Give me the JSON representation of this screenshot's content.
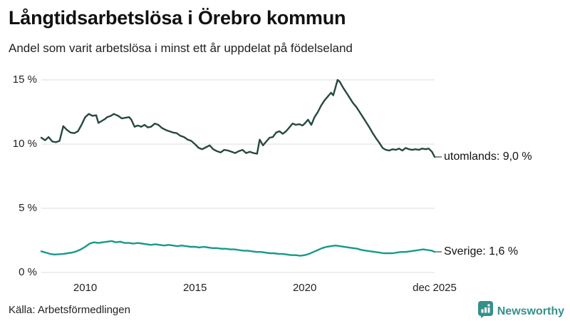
{
  "header": {
    "title": "Långtidsarbetslösa i Örebro kommun",
    "subtitle": "Andel som varit arbetslösa i minst ett år uppdelat på födelseland"
  },
  "footer": {
    "source": "Källa: Arbetsförmedlingen"
  },
  "branding": {
    "name": "Newsworthy",
    "icon": "newsworthy-bars-icon",
    "color": "#35908a"
  },
  "chart_data": {
    "type": "line",
    "title": "Långtidsarbetslösa i Örebro kommun",
    "subtitle": "Andel som varit arbetslösa i minst ett år uppdelat på födelseland",
    "grid": "horizontal",
    "legend_position": "end-of-line-labels",
    "colors": {
      "gridline": "#dcdcdc",
      "utomlands_line": "#264842",
      "sverige_line": "#169a8a"
    },
    "x_axis": {
      "label": "",
      "range": [
        2008.0,
        2025.92
      ],
      "ticks": [
        2010,
        2015,
        2020,
        2025.92
      ],
      "tick_labels": [
        "2010",
        "2015",
        "2020",
        "dec 2025"
      ]
    },
    "y_axis": {
      "label": "",
      "unit": "%",
      "range": [
        0,
        15.5
      ],
      "ticks": [
        0,
        5,
        10,
        15
      ],
      "tick_labels": [
        "0 %",
        "5 %",
        "10 %",
        "15 %"
      ]
    },
    "series": [
      {
        "name": "utomlands",
        "label": "utomlands: 9,0 %",
        "last_value": 9.0,
        "color": "#264842",
        "x": [
          2008.0,
          2008.17,
          2008.33,
          2008.5,
          2008.67,
          2008.83,
          2009.0,
          2009.17,
          2009.33,
          2009.5,
          2009.67,
          2009.83,
          2010.0,
          2010.17,
          2010.33,
          2010.5,
          2010.6,
          2010.75,
          2010.9,
          2011.0,
          2011.17,
          2011.3,
          2011.5,
          2011.67,
          2011.83,
          2012.0,
          2012.1,
          2012.25,
          2012.4,
          2012.55,
          2012.7,
          2012.85,
          2013.0,
          2013.17,
          2013.33,
          2013.5,
          2013.67,
          2013.83,
          2014.0,
          2014.17,
          2014.33,
          2014.5,
          2014.67,
          2014.83,
          2015.0,
          2015.17,
          2015.33,
          2015.5,
          2015.67,
          2015.83,
          2016.0,
          2016.17,
          2016.33,
          2016.5,
          2016.67,
          2016.83,
          2017.0,
          2017.17,
          2017.33,
          2017.5,
          2017.67,
          2017.83,
          2017.95,
          2018.1,
          2018.25,
          2018.4,
          2018.55,
          2018.7,
          2018.85,
          2019.0,
          2019.15,
          2019.3,
          2019.45,
          2019.6,
          2019.75,
          2019.9,
          2020.0,
          2020.15,
          2020.3,
          2020.45,
          2020.6,
          2020.75,
          2020.9,
          2021.05,
          2021.2,
          2021.3,
          2021.4,
          2021.5,
          2021.6,
          2021.75,
          2021.9,
          2022.05,
          2022.2,
          2022.35,
          2022.5,
          2022.65,
          2022.8,
          2022.95,
          2023.1,
          2023.25,
          2023.4,
          2023.55,
          2023.7,
          2023.85,
          2024.0,
          2024.15,
          2024.3,
          2024.45,
          2024.6,
          2024.75,
          2024.9,
          2025.05,
          2025.2,
          2025.35,
          2025.5,
          2025.65,
          2025.8,
          2025.92
        ],
        "values": [
          10.5,
          10.3,
          10.55,
          10.2,
          10.15,
          10.25,
          11.4,
          11.1,
          10.9,
          10.85,
          11.0,
          11.5,
          12.1,
          12.35,
          12.2,
          12.25,
          11.65,
          11.8,
          11.95,
          12.1,
          12.2,
          12.35,
          12.2,
          12.0,
          12.05,
          12.1,
          11.9,
          11.35,
          11.45,
          11.35,
          11.5,
          11.3,
          11.35,
          11.6,
          11.5,
          11.25,
          11.1,
          11.0,
          10.9,
          10.85,
          10.65,
          10.55,
          10.35,
          10.25,
          10.0,
          9.7,
          9.6,
          9.75,
          9.9,
          9.6,
          9.45,
          9.35,
          9.55,
          9.5,
          9.4,
          9.3,
          9.45,
          9.55,
          9.3,
          9.4,
          9.3,
          9.25,
          10.35,
          9.9,
          10.2,
          10.5,
          10.55,
          10.9,
          11.0,
          10.8,
          11.0,
          11.3,
          11.6,
          11.5,
          11.55,
          11.45,
          11.6,
          11.9,
          11.5,
          12.1,
          12.5,
          13.0,
          13.4,
          13.7,
          14.0,
          13.8,
          14.4,
          15.0,
          14.85,
          14.4,
          14.0,
          13.6,
          13.2,
          12.9,
          12.5,
          12.1,
          11.7,
          11.3,
          10.85,
          10.45,
          10.1,
          9.7,
          9.55,
          9.5,
          9.6,
          9.55,
          9.65,
          9.5,
          9.7,
          9.6,
          9.55,
          9.6,
          9.55,
          9.65,
          9.6,
          9.65,
          9.4,
          9.0
        ]
      },
      {
        "name": "Sverige",
        "label": "Sverige: 1,6 %",
        "last_value": 1.6,
        "color": "#169a8a",
        "x": [
          2008.0,
          2008.2,
          2008.4,
          2008.6,
          2008.8,
          2009.0,
          2009.2,
          2009.4,
          2009.6,
          2009.8,
          2010.0,
          2010.2,
          2010.4,
          2010.6,
          2010.8,
          2011.0,
          2011.2,
          2011.4,
          2011.6,
          2011.8,
          2012.0,
          2012.2,
          2012.4,
          2012.6,
          2012.8,
          2013.0,
          2013.2,
          2013.4,
          2013.6,
          2013.8,
          2014.0,
          2014.2,
          2014.4,
          2014.6,
          2014.8,
          2015.0,
          2015.2,
          2015.4,
          2015.6,
          2015.8,
          2016.0,
          2016.2,
          2016.4,
          2016.6,
          2016.8,
          2017.0,
          2017.2,
          2017.4,
          2017.6,
          2017.8,
          2018.0,
          2018.2,
          2018.4,
          2018.6,
          2018.8,
          2019.0,
          2019.2,
          2019.4,
          2019.6,
          2019.8,
          2020.0,
          2020.2,
          2020.4,
          2020.6,
          2020.8,
          2021.0,
          2021.2,
          2021.4,
          2021.6,
          2021.8,
          2022.0,
          2022.2,
          2022.4,
          2022.6,
          2022.8,
          2023.0,
          2023.2,
          2023.4,
          2023.6,
          2023.8,
          2024.0,
          2024.2,
          2024.4,
          2024.6,
          2024.8,
          2025.0,
          2025.2,
          2025.4,
          2025.6,
          2025.8,
          2025.92
        ],
        "values": [
          1.65,
          1.55,
          1.45,
          1.4,
          1.42,
          1.45,
          1.5,
          1.55,
          1.65,
          1.8,
          2.0,
          2.25,
          2.35,
          2.3,
          2.35,
          2.4,
          2.45,
          2.35,
          2.4,
          2.3,
          2.3,
          2.25,
          2.3,
          2.25,
          2.2,
          2.15,
          2.2,
          2.15,
          2.1,
          2.15,
          2.1,
          2.05,
          2.1,
          2.05,
          2.0,
          2.0,
          1.95,
          2.0,
          1.95,
          1.9,
          1.9,
          1.85,
          1.85,
          1.8,
          1.8,
          1.75,
          1.7,
          1.7,
          1.65,
          1.6,
          1.6,
          1.55,
          1.5,
          1.5,
          1.45,
          1.45,
          1.4,
          1.35,
          1.35,
          1.3,
          1.35,
          1.45,
          1.6,
          1.75,
          1.9,
          2.0,
          2.05,
          2.1,
          2.05,
          2.0,
          1.95,
          1.9,
          1.85,
          1.75,
          1.7,
          1.65,
          1.6,
          1.55,
          1.5,
          1.5,
          1.5,
          1.55,
          1.6,
          1.6,
          1.65,
          1.7,
          1.75,
          1.8,
          1.75,
          1.7,
          1.6
        ]
      }
    ]
  }
}
